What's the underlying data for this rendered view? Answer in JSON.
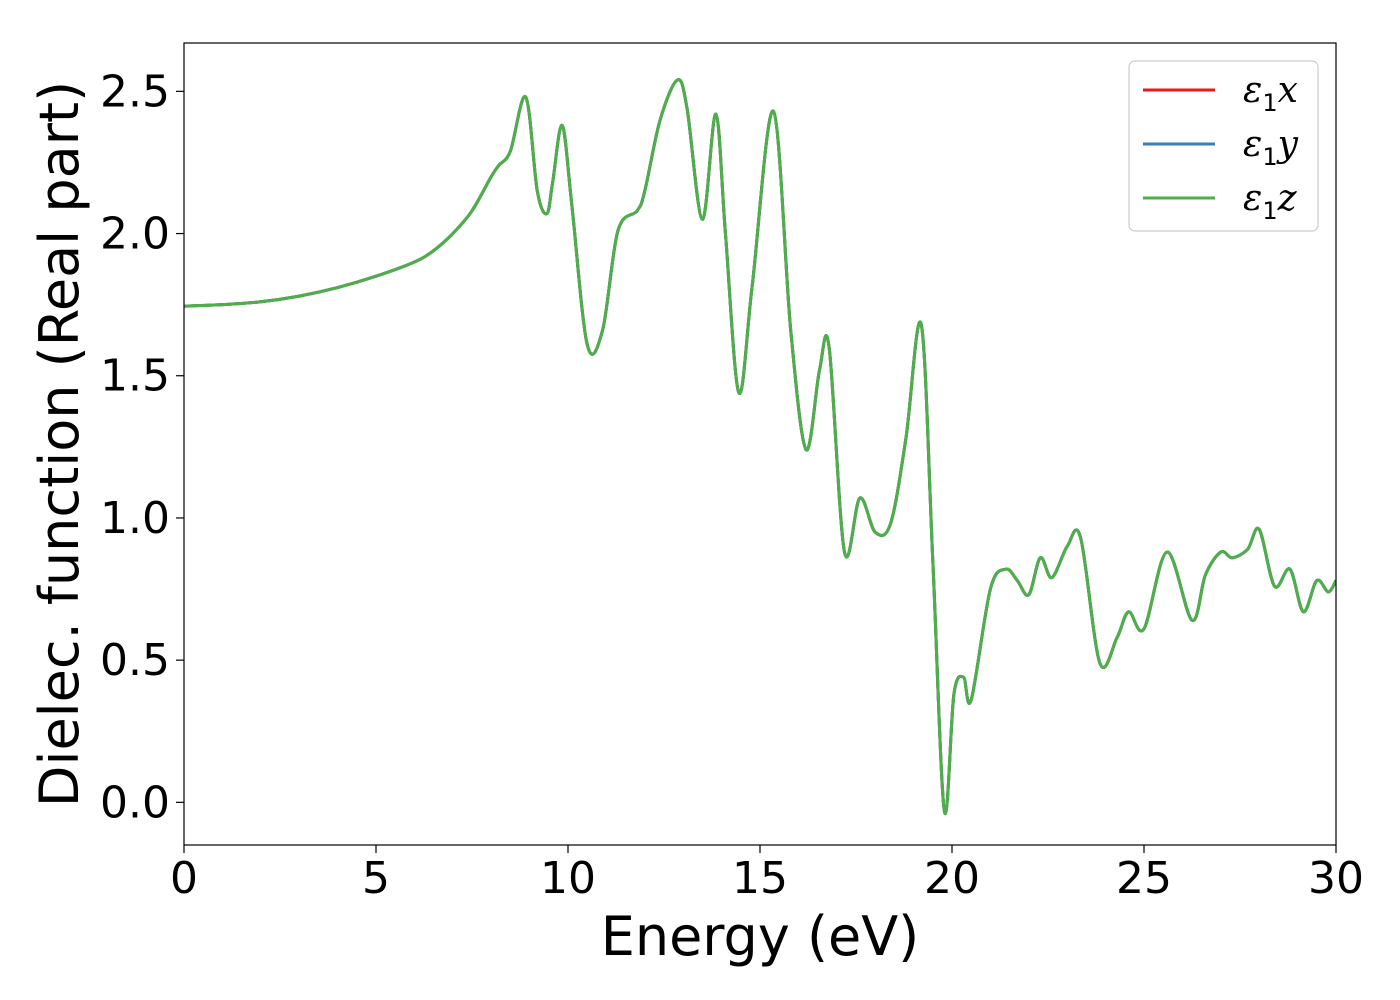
{
  "chart_data": {
    "type": "line",
    "title": "",
    "xlabel": "Energy (eV)",
    "ylabel": "Dielec. function (Real part)",
    "xlim": [
      0,
      30
    ],
    "ylim": [
      -0.15,
      2.67
    ],
    "xticks": [
      0,
      5,
      10,
      15,
      20,
      25,
      30
    ],
    "xtick_labels": [
      "0",
      "5",
      "10",
      "15",
      "20",
      "25",
      "30"
    ],
    "yticks": [
      0.0,
      0.5,
      1.0,
      1.5,
      2.0,
      2.5
    ],
    "ytick_labels": [
      "0.0",
      "0.5",
      "1.0",
      "1.5",
      "2.0",
      "2.5"
    ],
    "grid": false,
    "legend_position": "top-right",
    "series": [
      {
        "name": "ε1x",
        "symbol": "ε",
        "subscript": "1",
        "suffix": "x",
        "color": "#e41a1c",
        "x": [
          0,
          1,
          2,
          3,
          4,
          5,
          6,
          6.5,
          7,
          7.5,
          8,
          8.2,
          8.5,
          8.9,
          9.2,
          9.45,
          9.6,
          9.85,
          10.1,
          10.5,
          10.9,
          11.3,
          11.8,
          12.0,
          12.4,
          12.85,
          13.1,
          13.5,
          13.85,
          14.1,
          14.45,
          14.8,
          15.35,
          15.8,
          16.2,
          16.55,
          16.8,
          17.2,
          17.6,
          18.0,
          18.4,
          18.8,
          19.2,
          19.5,
          19.8,
          20.05,
          20.3,
          20.5,
          21.0,
          21.4,
          21.7,
          22.0,
          22.3,
          22.6,
          23.0,
          23.35,
          23.85,
          24.3,
          24.6,
          25.0,
          25.6,
          26.25,
          26.6,
          27.0,
          27.3,
          27.7,
          28.0,
          28.4,
          28.8,
          29.15,
          29.5,
          29.8,
          30.0
        ],
        "y": [
          1.745,
          1.75,
          1.76,
          1.78,
          1.81,
          1.85,
          1.9,
          1.94,
          2.0,
          2.08,
          2.2,
          2.24,
          2.29,
          2.48,
          2.15,
          2.07,
          2.18,
          2.38,
          2.1,
          1.61,
          1.66,
          2.01,
          2.08,
          2.15,
          2.4,
          2.54,
          2.44,
          2.05,
          2.42,
          2.0,
          1.44,
          1.82,
          2.43,
          1.66,
          1.24,
          1.52,
          1.6,
          0.88,
          1.07,
          0.95,
          0.98,
          1.28,
          1.68,
          0.85,
          -0.03,
          0.38,
          0.44,
          0.36,
          0.75,
          0.82,
          0.78,
          0.73,
          0.86,
          0.79,
          0.9,
          0.93,
          0.49,
          0.58,
          0.67,
          0.61,
          0.88,
          0.64,
          0.8,
          0.88,
          0.86,
          0.89,
          0.96,
          0.76,
          0.82,
          0.67,
          0.78,
          0.74,
          0.78
        ]
      },
      {
        "name": "ε1y",
        "symbol": "ε",
        "subscript": "1",
        "suffix": "y",
        "color": "#377eb8",
        "x": [
          0,
          1,
          2,
          3,
          4,
          5,
          6,
          6.5,
          7,
          7.5,
          8,
          8.2,
          8.5,
          8.9,
          9.2,
          9.45,
          9.6,
          9.85,
          10.1,
          10.5,
          10.9,
          11.3,
          11.8,
          12.0,
          12.4,
          12.85,
          13.1,
          13.5,
          13.85,
          14.1,
          14.45,
          14.8,
          15.35,
          15.8,
          16.2,
          16.55,
          16.8,
          17.2,
          17.6,
          18.0,
          18.4,
          18.8,
          19.2,
          19.5,
          19.8,
          20.05,
          20.3,
          20.5,
          21.0,
          21.4,
          21.7,
          22.0,
          22.3,
          22.6,
          23.0,
          23.35,
          23.85,
          24.3,
          24.6,
          25.0,
          25.6,
          26.25,
          26.6,
          27.0,
          27.3,
          27.7,
          28.0,
          28.4,
          28.8,
          29.15,
          29.5,
          29.8,
          30.0
        ],
        "y": [
          1.745,
          1.75,
          1.76,
          1.78,
          1.81,
          1.85,
          1.9,
          1.94,
          2.0,
          2.08,
          2.2,
          2.24,
          2.29,
          2.48,
          2.15,
          2.07,
          2.18,
          2.38,
          2.1,
          1.61,
          1.66,
          2.01,
          2.08,
          2.15,
          2.4,
          2.54,
          2.44,
          2.05,
          2.42,
          2.0,
          1.44,
          1.82,
          2.43,
          1.66,
          1.24,
          1.52,
          1.6,
          0.88,
          1.07,
          0.95,
          0.98,
          1.28,
          1.68,
          0.85,
          -0.03,
          0.38,
          0.44,
          0.36,
          0.75,
          0.82,
          0.78,
          0.73,
          0.86,
          0.79,
          0.9,
          0.93,
          0.49,
          0.58,
          0.67,
          0.61,
          0.88,
          0.64,
          0.8,
          0.88,
          0.86,
          0.89,
          0.96,
          0.76,
          0.82,
          0.67,
          0.78,
          0.74,
          0.78
        ]
      },
      {
        "name": "ε1z",
        "symbol": "ε",
        "subscript": "1",
        "suffix": "z",
        "color": "#4daf4a",
        "x": [
          0,
          1,
          2,
          3,
          4,
          5,
          6,
          6.5,
          7,
          7.5,
          8,
          8.2,
          8.5,
          8.9,
          9.2,
          9.45,
          9.6,
          9.85,
          10.1,
          10.5,
          10.9,
          11.3,
          11.8,
          12.0,
          12.4,
          12.85,
          13.1,
          13.5,
          13.85,
          14.1,
          14.45,
          14.8,
          15.35,
          15.8,
          16.2,
          16.55,
          16.8,
          17.2,
          17.6,
          18.0,
          18.4,
          18.8,
          19.2,
          19.5,
          19.8,
          20.05,
          20.3,
          20.5,
          21.0,
          21.4,
          21.7,
          22.0,
          22.3,
          22.6,
          23.0,
          23.35,
          23.85,
          24.3,
          24.6,
          25.0,
          25.6,
          26.25,
          26.6,
          27.0,
          27.3,
          27.7,
          28.0,
          28.4,
          28.8,
          29.15,
          29.5,
          29.8,
          30.0
        ],
        "y": [
          1.745,
          1.75,
          1.76,
          1.78,
          1.81,
          1.85,
          1.9,
          1.94,
          2.0,
          2.08,
          2.2,
          2.24,
          2.29,
          2.48,
          2.15,
          2.07,
          2.18,
          2.38,
          2.1,
          1.61,
          1.66,
          2.01,
          2.08,
          2.15,
          2.4,
          2.54,
          2.44,
          2.05,
          2.42,
          2.0,
          1.44,
          1.82,
          2.43,
          1.66,
          1.24,
          1.52,
          1.6,
          0.88,
          1.07,
          0.95,
          0.98,
          1.28,
          1.68,
          0.85,
          -0.03,
          0.38,
          0.44,
          0.36,
          0.75,
          0.82,
          0.78,
          0.73,
          0.86,
          0.79,
          0.9,
          0.93,
          0.49,
          0.58,
          0.67,
          0.61,
          0.88,
          0.64,
          0.8,
          0.88,
          0.86,
          0.89,
          0.96,
          0.76,
          0.82,
          0.67,
          0.78,
          0.74,
          0.78
        ]
      }
    ]
  }
}
